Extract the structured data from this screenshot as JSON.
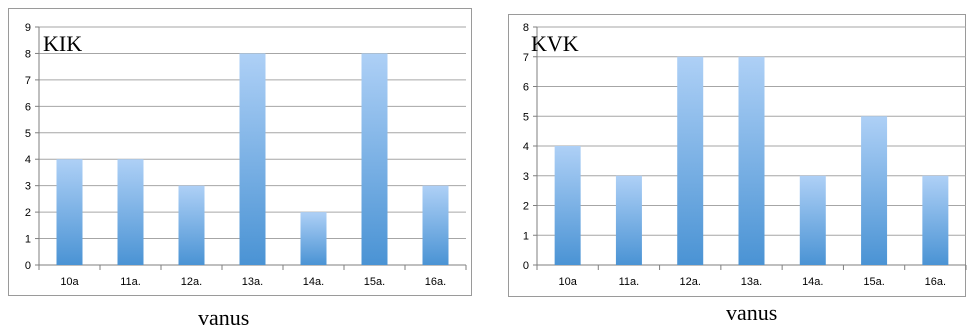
{
  "chart_data": [
    {
      "type": "bar",
      "title": "KIK",
      "xlabel": "vanus",
      "ylabel": "",
      "categories": [
        "10a",
        "11a.",
        "12a.",
        "13a.",
        "14a.",
        "15a.",
        "16a."
      ],
      "values": [
        4,
        4,
        3,
        8,
        2,
        8,
        3
      ],
      "ylim": [
        0,
        9
      ],
      "yticks": [
        "0",
        "1",
        "2",
        "3",
        "4",
        "5",
        "6",
        "7",
        "8",
        "9"
      ],
      "grid": true,
      "bar_color_top": "#aed0f6",
      "bar_color_bottom": "#4a93d4"
    },
    {
      "type": "bar",
      "title": "KVK",
      "xlabel": "vanus",
      "ylabel": "",
      "categories": [
        "10a",
        "11a.",
        "12a.",
        "13a.",
        "14a.",
        "15a.",
        "16a."
      ],
      "values": [
        4,
        3,
        7,
        7,
        3,
        5,
        3
      ],
      "ylim": [
        0,
        8
      ],
      "yticks": [
        "0",
        "1",
        "2",
        "3",
        "4",
        "5",
        "6",
        "7",
        "8"
      ],
      "grid": true,
      "bar_color_top": "#aed0f6",
      "bar_color_bottom": "#4a93d4"
    }
  ]
}
